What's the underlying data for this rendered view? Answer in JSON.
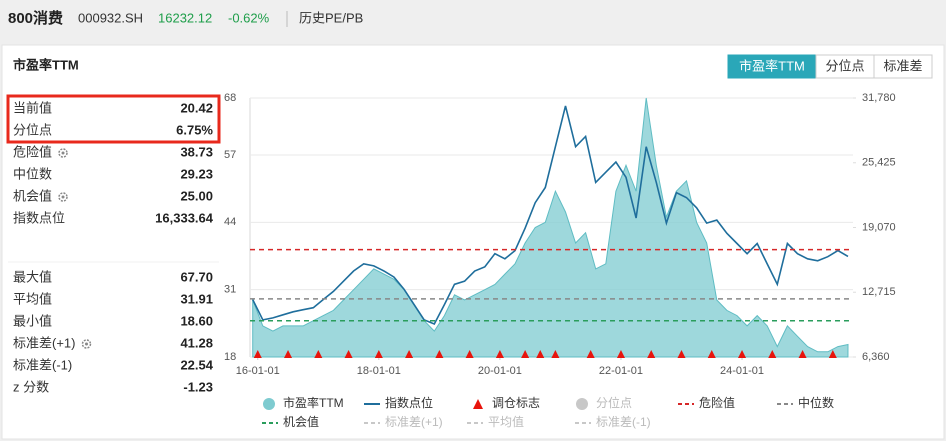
{
  "header": {
    "title": "800消费",
    "code": "000932.SH",
    "price": 16232.12,
    "change": "-0.62%",
    "link": "历史PE/PB"
  },
  "panel_title": "市盈率TTM",
  "tabs": [
    "市盈率TTM",
    "分位点",
    "标准差"
  ],
  "active_tab": 0,
  "stat_groups": [
    [
      {
        "name": "当前值",
        "value": 20.42
      },
      {
        "name": "分位点",
        "value": 6.75,
        "value_label": "6.75%"
      },
      {
        "name": "危险值",
        "value": 38.73,
        "icon": "gear"
      },
      {
        "name": "中位数",
        "value": 29.23
      },
      {
        "name": "机会值",
        "value": 25,
        "value_label": "25.00",
        "icon": "gear"
      },
      {
        "name": "指数点位",
        "value": 16333.64,
        "value_label": "16,333.64"
      }
    ],
    [
      {
        "name": "最大值",
        "value": 67.7,
        "value_label": "67.70"
      },
      {
        "name": "平均值",
        "value": 31.91
      },
      {
        "name": "最小值",
        "value": 18.6,
        "value_label": "18.60"
      },
      {
        "name": "标准差(+1)",
        "value": 41.28,
        "icon": "gear"
      },
      {
        "name": "标准差(-1)",
        "value": 22.54
      },
      {
        "name": "z 分数",
        "value": -1.23
      }
    ]
  ],
  "chart_data": {
    "type": "line",
    "x": [
      "15-12-01",
      "16-02-01",
      "16-04-01",
      "16-06-01",
      "16-08-01",
      "16-10-01",
      "16-12-01",
      "17-02-01",
      "17-04-01",
      "17-06-01",
      "17-08-01",
      "17-10-01",
      "17-12-01",
      "18-02-01",
      "18-04-01",
      "18-06-01",
      "18-08-01",
      "18-10-01",
      "18-12-01",
      "19-02-01",
      "19-04-01",
      "19-06-01",
      "19-08-01",
      "19-10-01",
      "19-12-01",
      "20-02-01",
      "20-04-01",
      "20-06-01",
      "20-08-01",
      "20-10-01",
      "20-12-01",
      "21-02-01",
      "21-04-01",
      "21-06-01",
      "21-08-01",
      "21-10-01",
      "21-12-01",
      "22-02-01",
      "22-04-01",
      "22-06-01",
      "22-08-01",
      "22-10-01",
      "22-12-01",
      "23-02-01",
      "23-04-01",
      "23-06-01",
      "23-08-01",
      "23-10-01",
      "23-12-01",
      "24-02-01",
      "24-04-01",
      "24-06-01",
      "24-08-01",
      "24-10-01",
      "24-12-01",
      "25-02-01",
      "25-04-01",
      "25-06-01",
      "25-08-01",
      "25-10-01"
    ],
    "xlim": [
      "15-11-15",
      "25-11-01"
    ],
    "xticks": [
      "16-01-01",
      "18-01-01",
      "20-01-01",
      "22-01-01",
      "24-01-01"
    ],
    "ylim": [
      18,
      68
    ],
    "yticks": [
      18,
      31,
      44,
      57,
      68
    ],
    "y2lim": [
      6360,
      31780
    ],
    "y2ticks": [
      {
        "value": 6360,
        "label": "6,360"
      },
      {
        "value": 12715,
        "label": "12,715"
      },
      {
        "value": 19070,
        "label": "19,070"
      },
      {
        "value": 25425,
        "label": "25,425"
      },
      {
        "value": 31780,
        "label": "31,780"
      }
    ],
    "grid": true,
    "series": [
      {
        "name": "市盈率TTM",
        "color": "#7ecbd0",
        "values": [
          29,
          24,
          23,
          24,
          24,
          24,
          25,
          26,
          27,
          29,
          31,
          33,
          35,
          34,
          33,
          31,
          28,
          25,
          23,
          26,
          30,
          29,
          30,
          31,
          32,
          34,
          36,
          40,
          43,
          44,
          50,
          46,
          40,
          42,
          35,
          36,
          50,
          55,
          50,
          68,
          55,
          45,
          50,
          52,
          44,
          40,
          29,
          27,
          26,
          24,
          26,
          24,
          20,
          24,
          22,
          20,
          19,
          19,
          20,
          20.42
        ]
      },
      {
        "name": "指数点位",
        "color": "#1f6e9c",
        "axis": "y2",
        "values": [
          12000,
          10000,
          10200,
          10500,
          10800,
          11000,
          11200,
          12000,
          12800,
          13800,
          14800,
          15500,
          15300,
          14800,
          14200,
          13000,
          11500,
          10000,
          9600,
          11500,
          13500,
          13800,
          14800,
          15200,
          16500,
          16000,
          16800,
          19000,
          21500,
          23000,
          27000,
          31000,
          27000,
          28000,
          23500,
          24500,
          25500,
          24000,
          20000,
          27000,
          23500,
          19500,
          22500,
          22000,
          21000,
          19500,
          19800,
          18500,
          17500,
          16500,
          17500,
          15500,
          13500,
          17500,
          16500,
          16000,
          15800,
          16200,
          16800,
          16232.12
        ]
      }
    ],
    "markers": {
      "name": "调仓标志",
      "color": "#e8140c",
      "x": [
        "16-01-01",
        "16-07-01",
        "17-01-01",
        "17-07-01",
        "18-01-01",
        "18-07-01",
        "19-01-01",
        "19-07-01",
        "20-01-01",
        "20-06-01",
        "20-09-01",
        "20-12-01",
        "21-07-01",
        "22-01-01",
        "22-07-01",
        "23-01-01",
        "23-07-01",
        "24-01-01",
        "24-07-01",
        "25-01-01",
        "25-07-01"
      ]
    },
    "lines": [
      {
        "name": "分位点",
        "color": "#c8c8c8",
        "style": "dot",
        "active": false
      },
      {
        "name": "危险值",
        "color": "#d62728",
        "style": "dashed",
        "active": true
      },
      {
        "name": "中位数",
        "color": "#888888",
        "style": "dashed",
        "active": true
      },
      {
        "name": "机会值",
        "color": "#2a9d5c",
        "style": "dashed",
        "active": true
      },
      {
        "name": "标准差(+1)",
        "color": "#c8c8c8",
        "style": "dashed",
        "active": false
      },
      {
        "name": "平均值",
        "color": "#c8c8c8",
        "style": "dashed",
        "active": false
      },
      {
        "name": "标准差(-1)",
        "color": "#c8c8c8",
        "style": "dashed",
        "active": false
      }
    ]
  }
}
